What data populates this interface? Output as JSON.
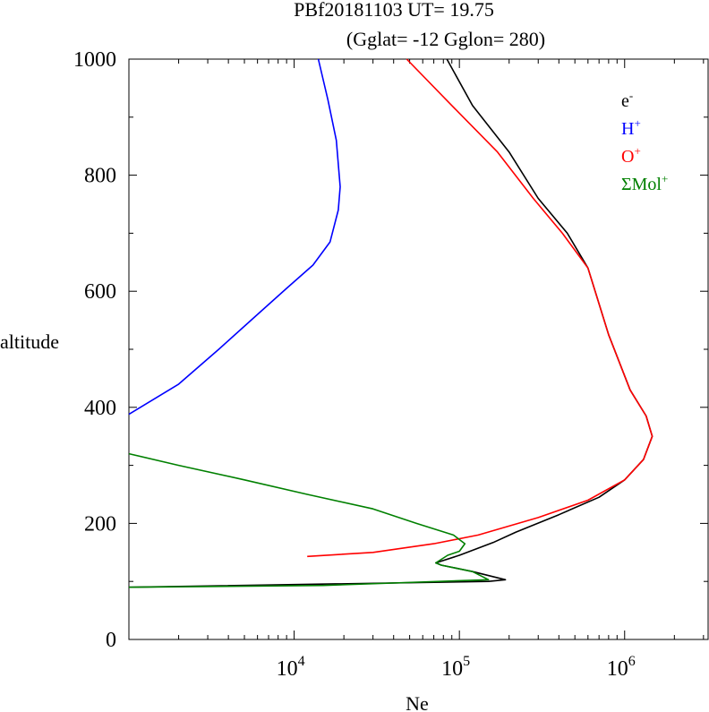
{
  "chart_data": {
    "type": "line",
    "title_line1": "PBf20181103   UT=  19.75",
    "title_line2": "(Gglat= -12   Gglon=  280)",
    "xlabel": "Ne",
    "ylabel": "altitude",
    "x_scale": "log",
    "xlim": [
      1000,
      3200000
    ],
    "ylim": [
      0,
      1000
    ],
    "y_ticks": [
      0,
      200,
      400,
      600,
      800,
      1000
    ],
    "y_tick_labels": [
      "0",
      "200",
      "400",
      "600",
      "800",
      "1000"
    ],
    "x_major_ticks": [
      10000,
      100000,
      1000000
    ],
    "x_tick_labels": [
      {
        "base": "10",
        "exp": "4"
      },
      {
        "base": "10",
        "exp": "5"
      },
      {
        "base": "10",
        "exp": "6"
      }
    ],
    "grid": false,
    "legend_position": "top-right",
    "series": [
      {
        "name": "e",
        "name_sup": "-",
        "color": "#000000",
        "points": [
          [
            1000,
            90
          ],
          [
            150000,
            100
          ],
          [
            190000,
            103
          ],
          [
            120000,
            117
          ],
          [
            78000,
            128
          ],
          [
            72000,
            132
          ],
          [
            100000,
            145
          ],
          [
            160000,
            167
          ],
          [
            220000,
            185
          ],
          [
            400000,
            215
          ],
          [
            700000,
            245
          ],
          [
            1000000,
            275
          ],
          [
            1300000,
            310
          ],
          [
            1470000,
            350
          ],
          [
            1350000,
            385
          ],
          [
            1080000,
            430
          ],
          [
            800000,
            525
          ],
          [
            600000,
            640
          ],
          [
            450000,
            700
          ],
          [
            300000,
            760
          ],
          [
            200000,
            840
          ],
          [
            120000,
            920
          ],
          [
            84000,
            1000
          ]
        ]
      },
      {
        "name": "H",
        "name_sup": "+",
        "color": "#0000ff",
        "points": [
          [
            1000,
            388
          ],
          [
            2000,
            440
          ],
          [
            3500,
            500
          ],
          [
            6000,
            560
          ],
          [
            9000,
            605
          ],
          [
            13000,
            645
          ],
          [
            16500,
            685
          ],
          [
            18500,
            740
          ],
          [
            19000,
            780
          ],
          [
            18000,
            860
          ],
          [
            16000,
            930
          ],
          [
            14000,
            1000
          ]
        ]
      },
      {
        "name": "O",
        "name_sup": "+",
        "color": "#ff0000",
        "points": [
          [
            12000,
            143
          ],
          [
            30000,
            150
          ],
          [
            70000,
            165
          ],
          [
            130000,
            180
          ],
          [
            300000,
            210
          ],
          [
            600000,
            240
          ],
          [
            1000000,
            275
          ],
          [
            1300000,
            310
          ],
          [
            1470000,
            350
          ],
          [
            1350000,
            385
          ],
          [
            1080000,
            430
          ],
          [
            800000,
            525
          ],
          [
            600000,
            640
          ],
          [
            420000,
            700
          ],
          [
            280000,
            760
          ],
          [
            170000,
            840
          ],
          [
            90000,
            920
          ],
          [
            48000,
            1000
          ]
        ]
      },
      {
        "name": "ΣMol",
        "name_sup": "+",
        "color": "#008000",
        "points": [
          [
            1000,
            320
          ],
          [
            2000,
            300
          ],
          [
            5000,
            275
          ],
          [
            12000,
            250
          ],
          [
            30000,
            225
          ],
          [
            55000,
            200
          ],
          [
            92000,
            180
          ],
          [
            108000,
            165
          ],
          [
            100000,
            152
          ],
          [
            85000,
            145
          ],
          [
            72000,
            132
          ],
          [
            78000,
            128
          ],
          [
            120000,
            117
          ],
          [
            150000,
            103
          ],
          [
            15000,
            93
          ],
          [
            1000,
            90
          ]
        ]
      }
    ]
  }
}
